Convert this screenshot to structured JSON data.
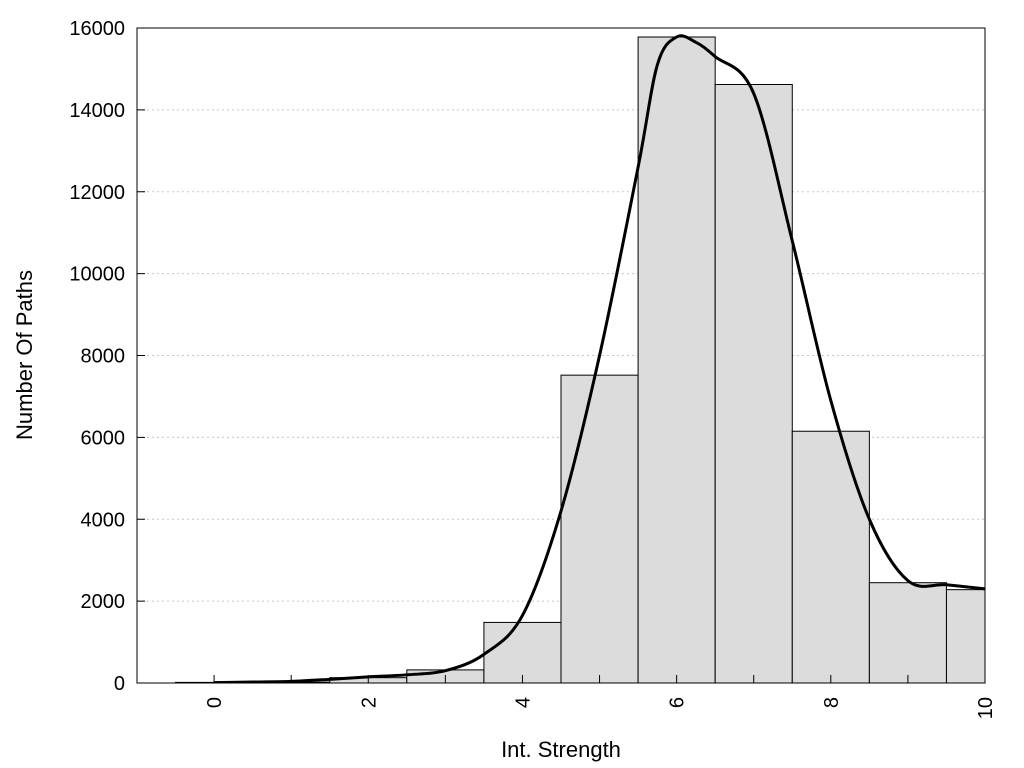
{
  "chart_data": {
    "type": "bar",
    "title": "",
    "xlabel": "Int. Strength",
    "ylabel": "Number Of Paths",
    "xlim": [
      -1,
      10
    ],
    "ylim": [
      0,
      16000
    ],
    "x_ticks": [
      "0",
      "2",
      "4",
      "6",
      "8",
      "10"
    ],
    "y_ticks": [
      "0",
      "2000",
      "4000",
      "6000",
      "8000",
      "10000",
      "12000",
      "14000",
      "16000"
    ],
    "grid": "horizontal dotted",
    "legend": "none",
    "series": [
      {
        "type": "bar",
        "bin_width": 1,
        "x": [
          0,
          1,
          2,
          3,
          4,
          5,
          6,
          7,
          8,
          9,
          10
        ],
        "values": [
          15,
          20,
          130,
          320,
          1480,
          7520,
          15780,
          14620,
          6150,
          2450,
          2280
        ]
      },
      {
        "type": "line",
        "smooth": true,
        "x": [
          0,
          0.5,
          1,
          1.5,
          2,
          2.5,
          3,
          3.5,
          4,
          4.5,
          5,
          5.5,
          5.75,
          6,
          6.25,
          6.5,
          7,
          7.5,
          8,
          8.5,
          9,
          9.5,
          10
        ],
        "values": [
          10,
          25,
          40,
          90,
          150,
          200,
          300,
          700,
          1650,
          4200,
          8000,
          12600,
          15100,
          15780,
          15650,
          15300,
          14400,
          10800,
          6900,
          4000,
          2500,
          2400,
          2300
        ]
      }
    ],
    "colors": {
      "bar_fill": "#dcdcdc",
      "bar_stroke": "#000000",
      "line": "#000000",
      "grid": "#c8c8c8"
    }
  }
}
